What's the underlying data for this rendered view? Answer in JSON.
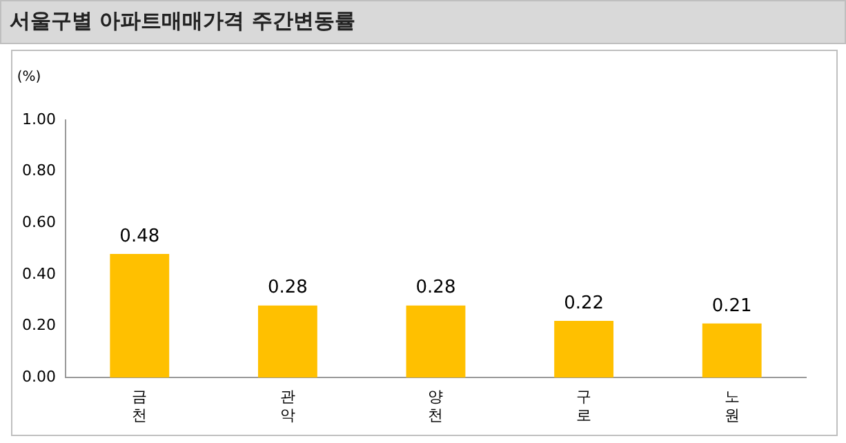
{
  "chart_data": {
    "type": "bar",
    "title": "서울구별 아파트매매가격 주간변동률",
    "ylabel": "(%)",
    "categories": [
      "금천",
      "관악",
      "양천",
      "구로",
      "노원"
    ],
    "values": [
      0.48,
      0.28,
      0.28,
      0.22,
      0.21
    ],
    "color": "#ffc000",
    "ylim": [
      0,
      1
    ],
    "yticks": [
      {
        "value": 0,
        "label": "0.00"
      },
      {
        "value": 0.2,
        "label": "0.20"
      },
      {
        "value": 0.4,
        "label": "0.40"
      },
      {
        "value": 0.6,
        "label": "0.60"
      },
      {
        "value": 0.8,
        "label": "0.80"
      },
      {
        "value": 1,
        "label": "1.00"
      }
    ],
    "grid": false,
    "legend": false,
    "data_labels": true
  }
}
